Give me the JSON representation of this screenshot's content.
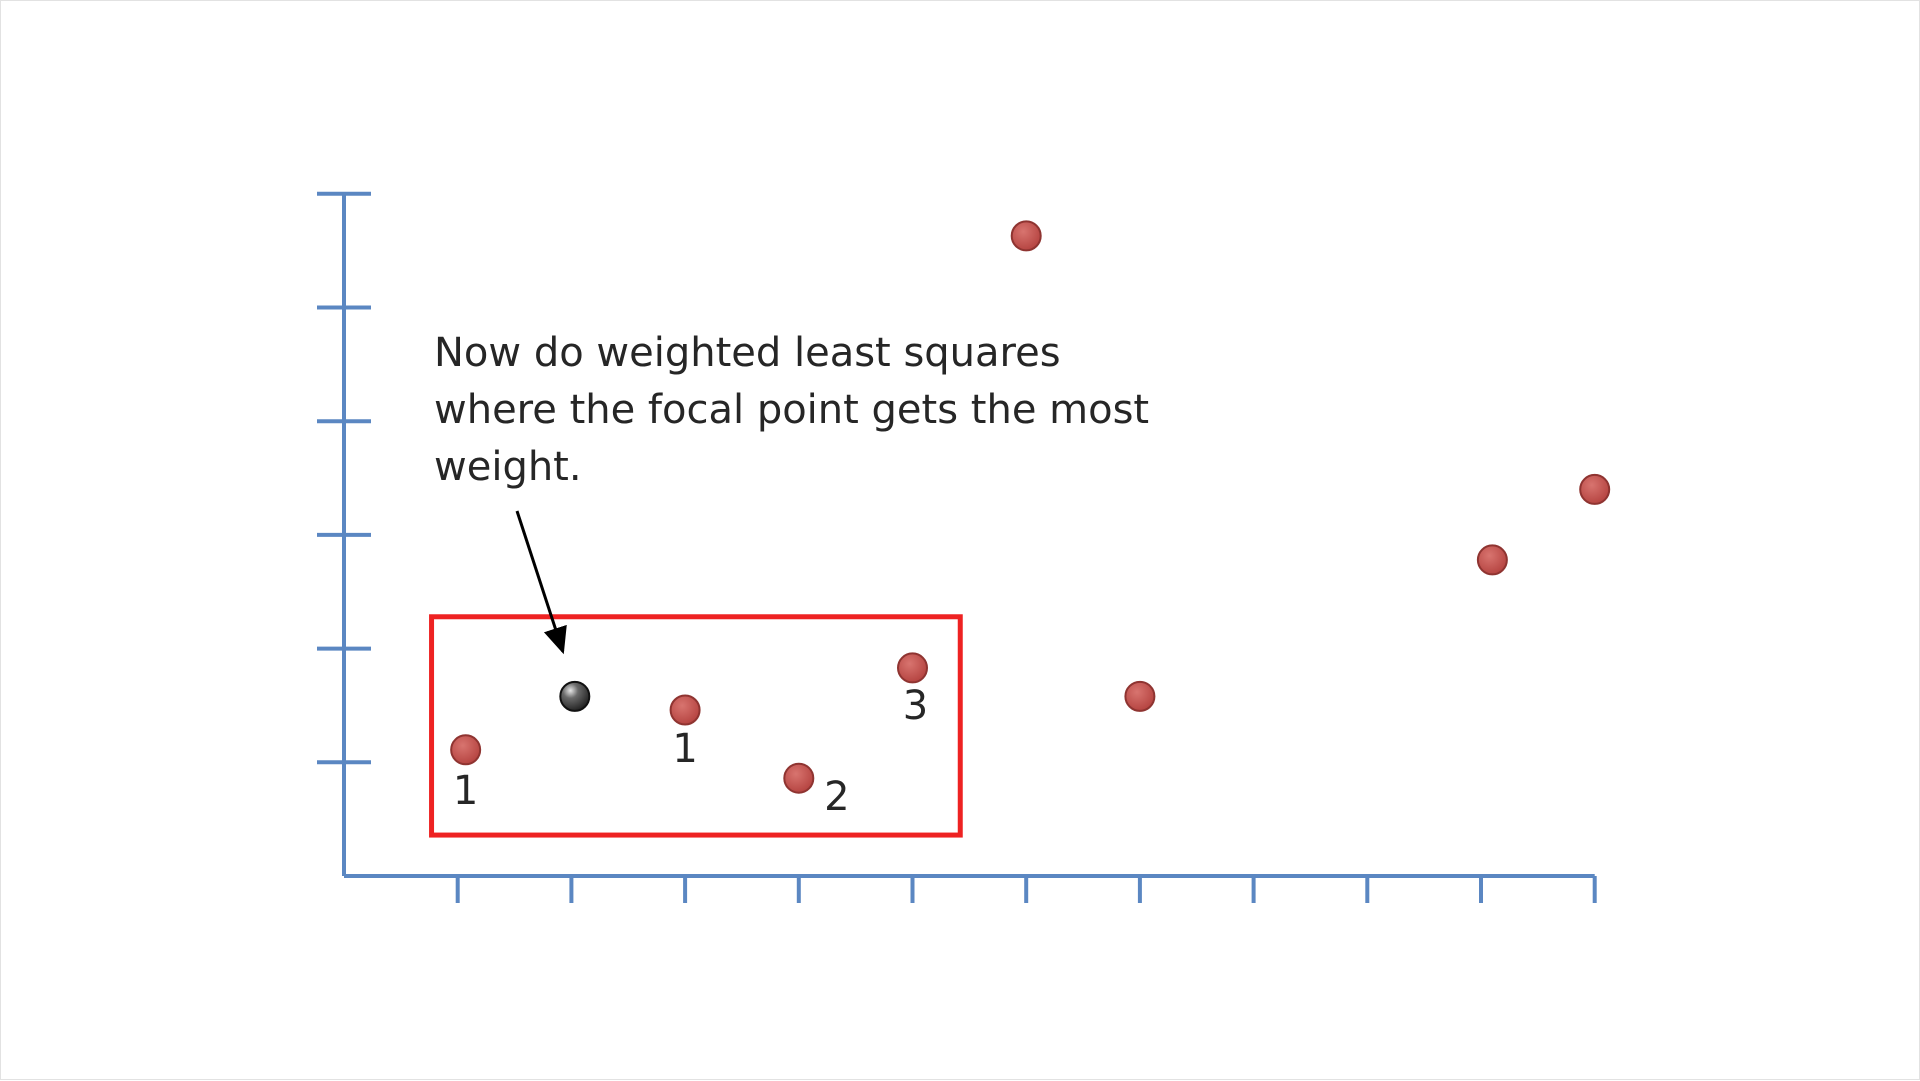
{
  "colors": {
    "axis": "#5b87c2",
    "point_fill": "#c0504d",
    "point_stroke": "#8f3431",
    "focal_fill": "#3a3a3a",
    "box": "#ee2222",
    "text": "#262626"
  },
  "annotation": {
    "lines": [
      "Now do weighted least squares",
      "where the focal point gets the most",
      "weight."
    ]
  },
  "chart_data": {
    "type": "scatter",
    "title": "",
    "xlabel": "",
    "ylabel": "",
    "xlim": [
      0,
      11
    ],
    "ylim": [
      0,
      6
    ],
    "x_ticks": [
      1,
      2,
      3,
      4,
      5,
      6,
      7,
      8,
      9,
      10,
      11
    ],
    "y_ticks": [
      1,
      2,
      3,
      4,
      5,
      6
    ],
    "tick_labels_shown": false,
    "grid": false,
    "points": [
      {
        "x": 1.07,
        "y": 1.11,
        "label": "1"
      },
      {
        "x": 3.0,
        "y": 1.46,
        "label": "1"
      },
      {
        "x": 4.0,
        "y": 0.86,
        "label": "2"
      },
      {
        "x": 5.0,
        "y": 1.83,
        "label": "3"
      },
      {
        "x": 6.0,
        "y": 5.63,
        "label": ""
      },
      {
        "x": 7.0,
        "y": 1.58,
        "label": ""
      },
      {
        "x": 10.1,
        "y": 2.78,
        "label": ""
      },
      {
        "x": 11.0,
        "y": 3.4,
        "label": ""
      }
    ],
    "focal_point": {
      "x": 2.03,
      "y": 1.58
    },
    "window": {
      "x": [
        0.77,
        5.42
      ],
      "y": [
        0.36,
        2.28
      ]
    }
  }
}
